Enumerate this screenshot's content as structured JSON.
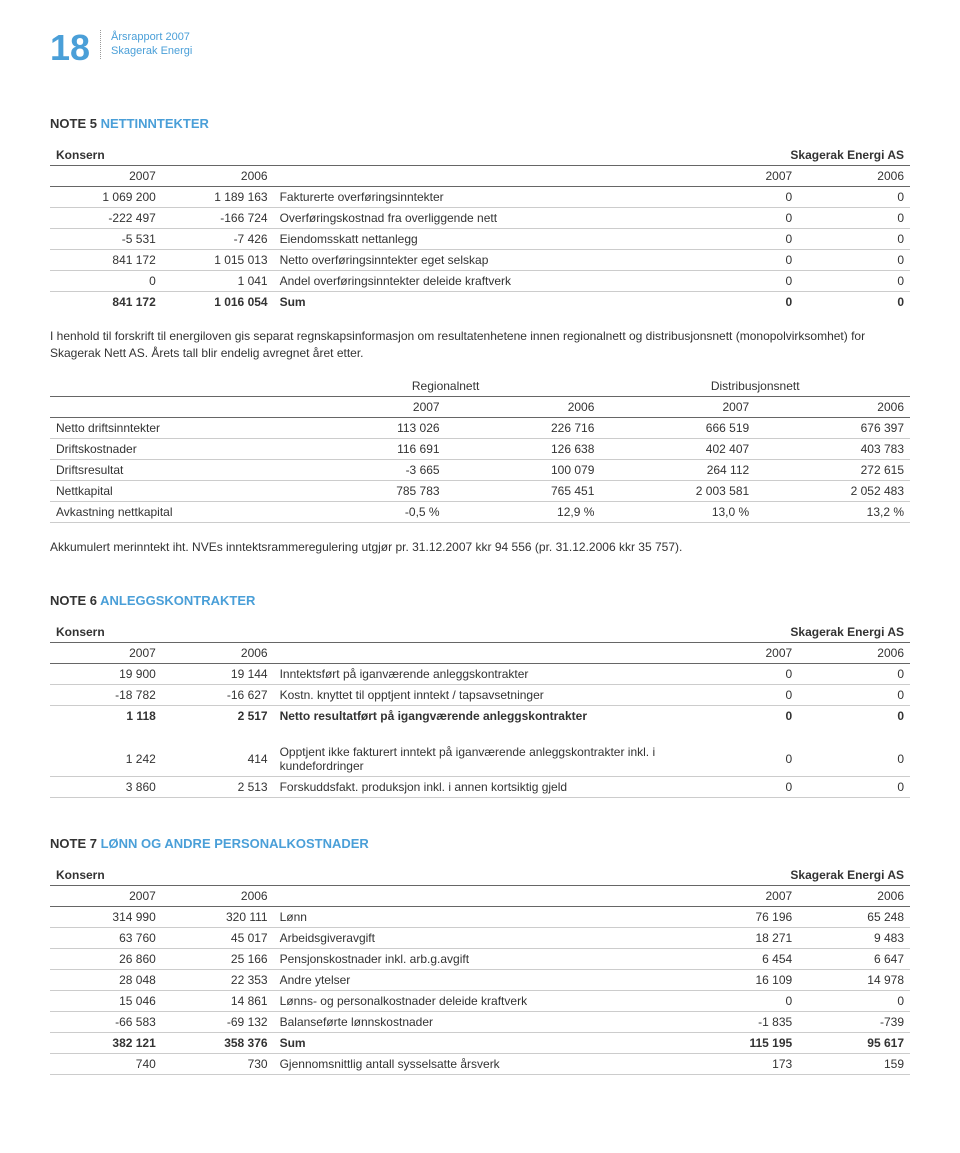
{
  "header": {
    "page_number": "18",
    "doc_line1": "Årsrapport 2007",
    "doc_line2": "Skagerak Energi"
  },
  "note5": {
    "title_num": "NOTE 5",
    "title_name": "NETTINNTEKTER",
    "t1": {
      "h_left": "Konsern",
      "h_right": "Skagerak Energi AS",
      "y": [
        "2007",
        "2006",
        "2007",
        "2006"
      ],
      "rows": [
        {
          "a": "1 069 200",
          "b": "1 189 163",
          "label": "Fakturerte overføringsinntekter",
          "c": "0",
          "d": "0"
        },
        {
          "a": "-222 497",
          "b": "-166 724",
          "label": "Overføringskostnad fra overliggende nett",
          "c": "0",
          "d": "0"
        },
        {
          "a": "-5 531",
          "b": "-7 426",
          "label": "Eiendomsskatt nettanlegg",
          "c": "0",
          "d": "0"
        },
        {
          "a": "841 172",
          "b": "1 015 013",
          "label": "Netto overføringsinntekter eget selskap",
          "c": "0",
          "d": "0"
        },
        {
          "a": "0",
          "b": "1 041",
          "label": "Andel overføringsinntekter deleide kraftverk",
          "c": "0",
          "d": "0"
        }
      ],
      "sum": {
        "a": "841 172",
        "b": "1 016 054",
        "label": "Sum",
        "c": "0",
        "d": "0"
      }
    },
    "para1": "I henhold til forskrift til energiloven gis separat regnskapsinformasjon om resultatenhetene innen regionalnett og distribusjonsnett (monopolvirksomhet) for Skagerak Nett AS. Årets tall blir endelig avregnet året etter.",
    "t2": {
      "h_left": "Regionalnett",
      "h_right": "Distribusjonsnett",
      "y": [
        "2007",
        "2006",
        "2007",
        "2006"
      ],
      "rows": [
        {
          "label": "Netto driftsinntekter",
          "a": "113 026",
          "b": "226 716",
          "c": "666 519",
          "d": "676 397"
        },
        {
          "label": "Driftskostnader",
          "a": "116 691",
          "b": "126 638",
          "c": "402 407",
          "d": "403 783"
        },
        {
          "label": "Driftsresultat",
          "a": "-3 665",
          "b": "100 079",
          "c": "264 112",
          "d": "272 615"
        },
        {
          "label": "Nettkapital",
          "a": "785 783",
          "b": "765 451",
          "c": "2 003 581",
          "d": "2 052 483"
        },
        {
          "label": "Avkastning nettkapital",
          "a": "-0,5 %",
          "b": "12,9 %",
          "c": "13,0 %",
          "d": "13,2 %"
        }
      ]
    },
    "para2": "Akkumulert merinntekt iht. NVEs inntektsrammeregulering utgjør pr. 31.12.2007 kkr 94 556 (pr. 31.12.2006 kkr 35 757)."
  },
  "note6": {
    "title_num": "NOTE 6",
    "title_name": "ANLEGGSKONTRAKTER",
    "t1": {
      "h_left": "Konsern",
      "h_right": "Skagerak Energi AS",
      "y": [
        "2007",
        "2006",
        "2007",
        "2006"
      ],
      "rows": [
        {
          "a": "19 900",
          "b": "19 144",
          "label": "Inntektsført på iganværende anleggskontrakter",
          "c": "0",
          "d": "0"
        },
        {
          "a": "-18 782",
          "b": "-16 627",
          "label": "Kostn. knyttet til opptjent inntekt / tapsavsetninger",
          "c": "0",
          "d": "0"
        }
      ],
      "sum": {
        "a": "1 118",
        "b": "2 517",
        "label": "Netto resultatført på igangværende anleggskontrakter",
        "c": "0",
        "d": "0"
      }
    },
    "t2_rows": [
      {
        "a": "1 242",
        "b": "414",
        "label": "Opptjent ikke fakturert inntekt på iganværende anleggskontrakter inkl. i kundefordringer",
        "c": "0",
        "d": "0"
      },
      {
        "a": "3 860",
        "b": "2 513",
        "label": "Forskuddsfakt. produksjon inkl. i annen kortsiktig gjeld",
        "c": "0",
        "d": "0"
      }
    ]
  },
  "note7": {
    "title_num": "NOTE 7",
    "title_name": "LØNN OG ANDRE PERSONALKOSTNADER",
    "h_left": "Konsern",
    "h_right": "Skagerak Energi AS",
    "y": [
      "2007",
      "2006",
      "2007",
      "2006"
    ],
    "rows": [
      {
        "a": "314 990",
        "b": "320 111",
        "label": "Lønn",
        "c": "76 196",
        "d": "65 248"
      },
      {
        "a": "63 760",
        "b": "45 017",
        "label": "Arbeidsgiveravgift",
        "c": "18 271",
        "d": "9 483"
      },
      {
        "a": "26 860",
        "b": "25 166",
        "label": "Pensjonskostnader inkl. arb.g.avgift",
        "c": "6 454",
        "d": "6 647"
      },
      {
        "a": "28 048",
        "b": "22 353",
        "label": "Andre ytelser",
        "c": "16 109",
        "d": "14 978"
      },
      {
        "a": "15 046",
        "b": "14 861",
        "label": "Lønns- og personalkostnader deleide kraftverk",
        "c": "0",
        "d": "0"
      },
      {
        "a": "-66 583",
        "b": "-69 132",
        "label": "Balanseførte lønnskostnader",
        "c": "-1 835",
        "d": "-739"
      }
    ],
    "sum": {
      "a": "382 121",
      "b": "358 376",
      "label": "Sum",
      "c": "115 195",
      "d": "95 617"
    },
    "extra": {
      "a": "740",
      "b": "730",
      "label": "Gjennomsnittlig antall sysselsatte årsverk",
      "c": "173",
      "d": "159"
    }
  }
}
